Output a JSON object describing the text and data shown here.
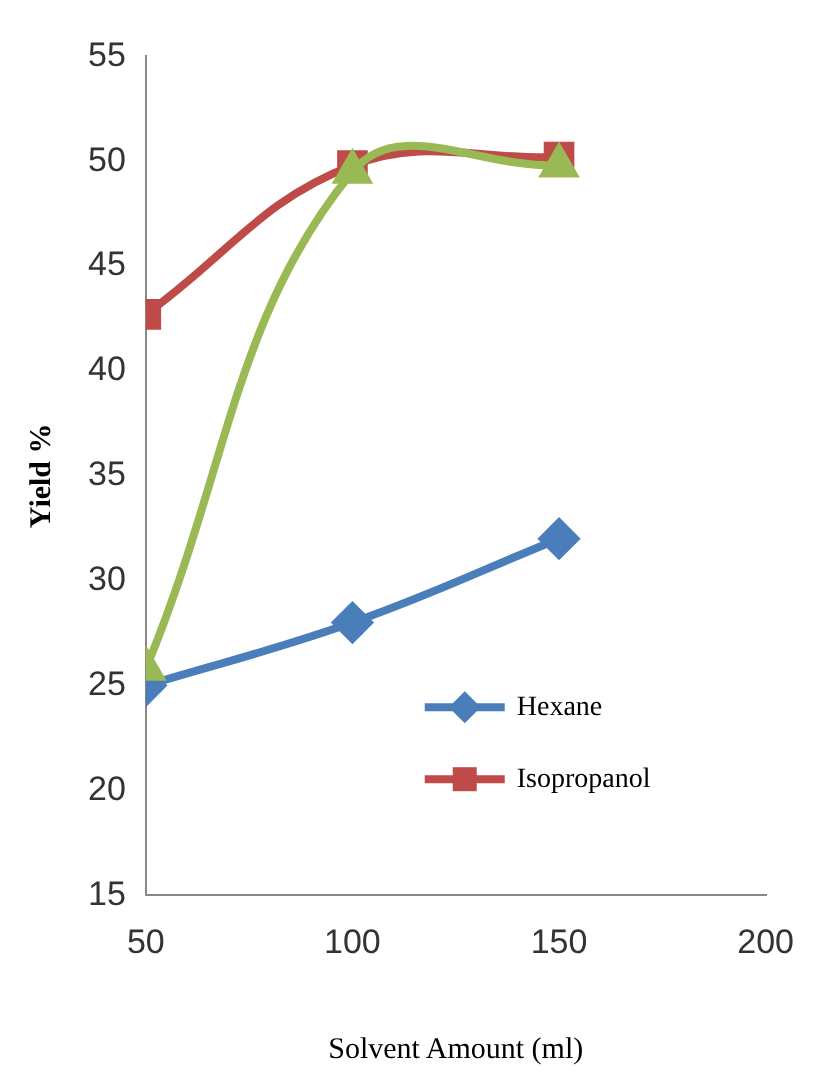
{
  "chart_data": {
    "type": "line",
    "xlabel": "Solvent Amount (ml)",
    "ylabel": "Yield %",
    "x": [
      50,
      100,
      150
    ],
    "series": [
      {
        "name": "Hexane",
        "color": "#4a7ebb",
        "values": [
          25,
          28,
          32
        ],
        "marker": "diamond"
      },
      {
        "name": "Isopropanol",
        "color": "#be4b48",
        "values": [
          42.7,
          49.8,
          50.2
        ],
        "marker": "square"
      },
      {
        "color": "#98b954",
        "values": [
          25.8,
          49.5,
          49.8
        ],
        "marker": "triangle"
      }
    ],
    "xlim": [
      50,
      200
    ],
    "xticks": [
      50,
      100,
      150,
      200
    ],
    "ylim": [
      15,
      55
    ],
    "yticks": [
      15,
      20,
      25,
      30,
      35,
      40,
      45,
      50,
      55
    ],
    "grid": false,
    "legend": "bottom right"
  }
}
